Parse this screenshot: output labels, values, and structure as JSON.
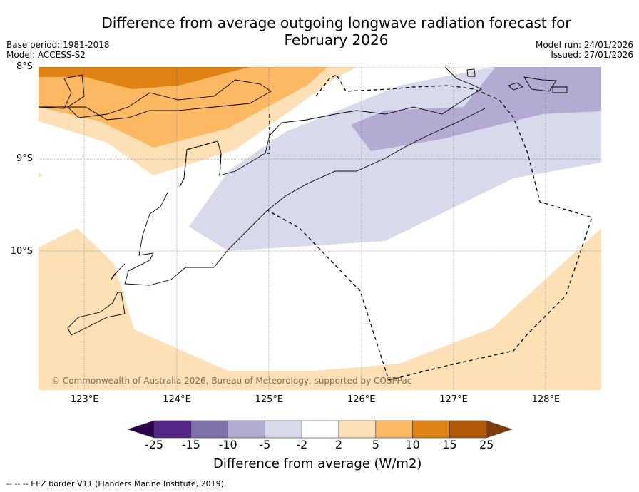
{
  "title_line1": "Difference from average outgoing longwave radiation forecast for",
  "title_line2": "February 2026",
  "base_period": "Base period: 1981-2018",
  "model": "Model: ACCESS-S2",
  "model_run": "Model run: 24/01/2026",
  "issued": "Issued: 27/01/2026",
  "copyright": "© Commonwealth of Australia 2026, Bureau of Meteorology, supported by COSPPac",
  "footer": "--  --  -- EEZ border V11 (Flanders Marine Institute, 2019).",
  "chart_data": {
    "type": "heatmap",
    "title": "Difference from average outgoing longwave radiation forecast for February 2026",
    "x_ticks": [
      "123°E",
      "124°E",
      "125°E",
      "126°E",
      "127°E",
      "128°E"
    ],
    "x_values": [
      123,
      124,
      125,
      126,
      127,
      128
    ],
    "y_ticks": [
      "8°S",
      "9°S",
      "10°S"
    ],
    "y_values": [
      -8,
      -9,
      -10
    ],
    "xlim": [
      122.5,
      128.6
    ],
    "ylim": [
      -11.5,
      -8
    ],
    "colorbar": {
      "label": "Difference from average (W/m2)",
      "ticks": [
        "-25",
        "-15",
        "-10",
        "-5",
        "-2",
        "2",
        "5",
        "10",
        "15",
        "25"
      ],
      "colors": [
        "#2d004b",
        "#542788",
        "#8073ac",
        "#b2abd2",
        "#d8daeb",
        "#ffffff",
        "#fee0b6",
        "#fdb863",
        "#e08214",
        "#b35806",
        "#7f3b08"
      ]
    },
    "regions": [
      {
        "level": "10 to 15",
        "color": "#e08214",
        "area": "north-west corner near 8°S 122.5-125°E"
      },
      {
        "level": "5 to 10",
        "color": "#fdb863",
        "area": "north-west, 8-8.9°S 122.5-126°E"
      },
      {
        "level": "2 to 5",
        "color": "#fee0b6",
        "area": "north-west band and south/south-west region"
      },
      {
        "level": "-5 to -2",
        "color": "#d8daeb",
        "area": "central band from 124.6°E to 128.6°E"
      },
      {
        "level": "-10 to -5",
        "color": "#b2abd2",
        "area": "north-east 126-128.6°E, 8-8.9°S"
      }
    ]
  }
}
